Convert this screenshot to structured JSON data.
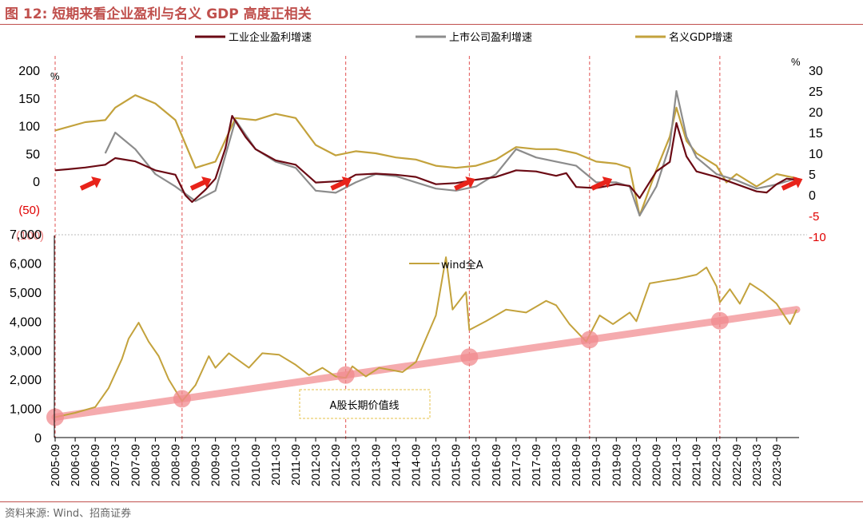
{
  "header": {
    "title": "图 12:  短期来看企业盈利与名义 GDP 高度正相关"
  },
  "footer": {
    "source": "资料来源:  Wind、招商证券"
  },
  "colors": {
    "industrial": "#6b0a14",
    "listed": "#8c8c8c",
    "gdp": "#c3a23c",
    "wind": "#c3a23c",
    "trend": "#f4a3a6",
    "dot": "#f08a8e",
    "arrow": "#e8231a",
    "vline": "#e05050",
    "accent": "#c0504d"
  },
  "chart_data": [
    {
      "type": "line",
      "legend_position": "top",
      "units": {
        "left": "%",
        "right": "%"
      },
      "ylim": [
        -50,
        200
      ],
      "y_ticks": [
        "200",
        "150",
        "100",
        "50",
        "0",
        "(50)"
      ],
      "y2lim": [
        -10,
        30
      ],
      "y2_ticks": [
        "30",
        "25",
        "20",
        "15",
        "10",
        "5",
        "0",
        "-5",
        "-10"
      ],
      "series": [
        {
          "name": "工业企业盈利增速",
          "axis": "left",
          "points": [
            [
              "2005-09",
              20
            ],
            [
              "2006-01",
              22
            ],
            [
              "2006-06",
              25
            ],
            [
              "2006-12",
              30
            ],
            [
              "2007-03",
              42
            ],
            [
              "2007-09",
              36
            ],
            [
              "2008-03",
              20
            ],
            [
              "2008-09",
              12
            ],
            [
              "2008-12",
              -25
            ],
            [
              "2009-02",
              -37
            ],
            [
              "2009-06",
              -15
            ],
            [
              "2009-09",
              5
            ],
            [
              "2009-12",
              60
            ],
            [
              "2010-02",
              118
            ],
            [
              "2010-06",
              80
            ],
            [
              "2010-09",
              58
            ],
            [
              "2011-03",
              38
            ],
            [
              "2011-09",
              30
            ],
            [
              "2012-03",
              -2
            ],
            [
              "2012-09",
              0
            ],
            [
              "2012-12",
              2
            ],
            [
              "2013-03",
              12
            ],
            [
              "2013-09",
              14
            ],
            [
              "2014-03",
              12
            ],
            [
              "2014-09",
              8
            ],
            [
              "2015-03",
              -5
            ],
            [
              "2015-09",
              -3
            ],
            [
              "2016-03",
              3
            ],
            [
              "2016-09",
              8
            ],
            [
              "2017-03",
              20
            ],
            [
              "2017-09",
              18
            ],
            [
              "2018-03",
              10
            ],
            [
              "2018-06",
              15
            ],
            [
              "2018-09",
              -10
            ],
            [
              "2019-03",
              -12
            ],
            [
              "2019-09",
              -5
            ],
            [
              "2020-01",
              -8
            ],
            [
              "2020-04",
              -30
            ],
            [
              "2020-09",
              18
            ],
            [
              "2021-01",
              35
            ],
            [
              "2021-03",
              105
            ],
            [
              "2021-06",
              45
            ],
            [
              "2021-09",
              18
            ],
            [
              "2022-03",
              8
            ],
            [
              "2022-09",
              -5
            ],
            [
              "2023-03",
              -18
            ],
            [
              "2023-06",
              -20
            ],
            [
              "2023-09",
              -5
            ],
            [
              "2023-12",
              5
            ],
            [
              "2024-03",
              3
            ]
          ]
        },
        {
          "name": "上市公司盈利增速",
          "axis": "right",
          "points": [
            [
              "2006-12",
              10
            ],
            [
              "2007-03",
              15
            ],
            [
              "2007-09",
              11
            ],
            [
              "2008-03",
              5
            ],
            [
              "2008-09",
              2
            ],
            [
              "2009-03",
              -1.5
            ],
            [
              "2009-09",
              1
            ],
            [
              "2010-03",
              18
            ],
            [
              "2010-09",
              11
            ],
            [
              "2011-03",
              8
            ],
            [
              "2011-09",
              6.5
            ],
            [
              "2012-03",
              1
            ],
            [
              "2012-09",
              0.5
            ],
            [
              "2013-03",
              3
            ],
            [
              "2013-09",
              5
            ],
            [
              "2014-03",
              4.5
            ],
            [
              "2014-09",
              3
            ],
            [
              "2015-03",
              1.5
            ],
            [
              "2015-09",
              1
            ],
            [
              "2016-03",
              2
            ],
            [
              "2016-09",
              5
            ],
            [
              "2017-03",
              11
            ],
            [
              "2017-09",
              9
            ],
            [
              "2018-03",
              8
            ],
            [
              "2018-09",
              7
            ],
            [
              "2019-03",
              3
            ],
            [
              "2019-09",
              3
            ],
            [
              "2020-01",
              2
            ],
            [
              "2020-04",
              -5
            ],
            [
              "2020-09",
              2
            ],
            [
              "2021-01",
              12
            ],
            [
              "2021-03",
              25
            ],
            [
              "2021-06",
              14
            ],
            [
              "2021-09",
              9
            ],
            [
              "2022-03",
              5
            ],
            [
              "2022-09",
              3.5
            ],
            [
              "2023-03",
              1.5
            ],
            [
              "2023-09",
              2.5
            ],
            [
              "2024-03",
              4
            ]
          ]
        },
        {
          "name": "名义GDP增速",
          "axis": "right",
          "points": [
            [
              "2005-09",
              15.5
            ],
            [
              "2006-06",
              17.5
            ],
            [
              "2006-12",
              18
            ],
            [
              "2007-03",
              21
            ],
            [
              "2007-09",
              24
            ],
            [
              "2008-03",
              22
            ],
            [
              "2008-09",
              18
            ],
            [
              "2009-03",
              6.5
            ],
            [
              "2009-09",
              8
            ],
            [
              "2010-03",
              18.5
            ],
            [
              "2010-09",
              18
            ],
            [
              "2011-03",
              19.5
            ],
            [
              "2011-09",
              18.5
            ],
            [
              "2012-03",
              12
            ],
            [
              "2012-09",
              9.5
            ],
            [
              "2013-03",
              10.5
            ],
            [
              "2013-09",
              10
            ],
            [
              "2014-03",
              9
            ],
            [
              "2014-09",
              8.5
            ],
            [
              "2015-03",
              7
            ],
            [
              "2015-09",
              6.5
            ],
            [
              "2016-03",
              7
            ],
            [
              "2016-09",
              8.5
            ],
            [
              "2017-03",
              11.5
            ],
            [
              "2017-09",
              11
            ],
            [
              "2018-03",
              11
            ],
            [
              "2018-09",
              10
            ],
            [
              "2019-03",
              8
            ],
            [
              "2019-09",
              7.5
            ],
            [
              "2020-01",
              6.5
            ],
            [
              "2020-04",
              -5
            ],
            [
              "2020-09",
              6
            ],
            [
              "2021-01",
              14
            ],
            [
              "2021-03",
              21
            ],
            [
              "2021-06",
              13
            ],
            [
              "2021-09",
              10
            ],
            [
              "2022-03",
              7
            ],
            [
              "2022-06",
              3
            ],
            [
              "2022-09",
              5
            ],
            [
              "2023-03",
              2
            ],
            [
              "2023-09",
              5
            ],
            [
              "2024-03",
              4
            ]
          ]
        }
      ],
      "arrows_at": [
        "2006-09",
        "2009-06",
        "2012-12",
        "2016-01",
        "2019-06",
        "2024-03"
      ]
    },
    {
      "type": "line",
      "ylim": [
        0,
        7000
      ],
      "y_ticks": [
        "7,000",
        "6,000",
        "5,000",
        "4,000",
        "3,000",
        "2,000",
        "1,000",
        "0"
      ],
      "x_ticks": [
        "2005-09",
        "2006-03",
        "2006-09",
        "2007-03",
        "2007-09",
        "2008-03",
        "2008-09",
        "2009-03",
        "2009-09",
        "2010-03",
        "2010-09",
        "2011-03",
        "2011-09",
        "2012-03",
        "2012-09",
        "2013-03",
        "2013-09",
        "2014-03",
        "2014-09",
        "2015-03",
        "2015-09",
        "2016-03",
        "2016-09",
        "2017-03",
        "2017-09",
        "2018-03",
        "2018-09",
        "2019-03",
        "2019-09",
        "2020-03",
        "2020-09",
        "2021-03",
        "2021-09",
        "2022-03",
        "2022-09",
        "2023-03",
        "2023-09"
      ],
      "series": [
        {
          "name": "wind全A",
          "points": [
            [
              "2005-09",
              700
            ],
            [
              "2006-03",
              850
            ],
            [
              "2006-09",
              1050
            ],
            [
              "2007-01",
              1700
            ],
            [
              "2007-05",
              2700
            ],
            [
              "2007-07",
              3400
            ],
            [
              "2007-10",
              3950
            ],
            [
              "2008-01",
              3300
            ],
            [
              "2008-04",
              2800
            ],
            [
              "2008-07",
              2000
            ],
            [
              "2008-11",
              1250
            ],
            [
              "2009-03",
              1800
            ],
            [
              "2009-07",
              2800
            ],
            [
              "2009-09",
              2400
            ],
            [
              "2010-01",
              2900
            ],
            [
              "2010-07",
              2400
            ],
            [
              "2010-11",
              2900
            ],
            [
              "2011-04",
              2850
            ],
            [
              "2011-09",
              2500
            ],
            [
              "2012-01",
              2150
            ],
            [
              "2012-05",
              2400
            ],
            [
              "2012-09",
              2100
            ],
            [
              "2012-12",
              2050
            ],
            [
              "2013-02",
              2450
            ],
            [
              "2013-06",
              2100
            ],
            [
              "2013-10",
              2400
            ],
            [
              "2014-05",
              2250
            ],
            [
              "2014-09",
              2600
            ],
            [
              "2014-12",
              3400
            ],
            [
              "2015-03",
              4200
            ],
            [
              "2015-06",
              6200
            ],
            [
              "2015-08",
              4400
            ],
            [
              "2015-12",
              5000
            ],
            [
              "2016-01",
              3700
            ],
            [
              "2016-06",
              4000
            ],
            [
              "2016-12",
              4400
            ],
            [
              "2017-06",
              4300
            ],
            [
              "2017-12",
              4700
            ],
            [
              "2018-03",
              4550
            ],
            [
              "2018-07",
              3900
            ],
            [
              "2018-12",
              3300
            ],
            [
              "2019-04",
              4200
            ],
            [
              "2019-08",
              3900
            ],
            [
              "2020-01",
              4300
            ],
            [
              "2020-03",
              4000
            ],
            [
              "2020-07",
              5300
            ],
            [
              "2020-12",
              5400
            ],
            [
              "2021-03",
              5450
            ],
            [
              "2021-09",
              5600
            ],
            [
              "2021-12",
              5850
            ],
            [
              "2022-03",
              5200
            ],
            [
              "2022-04",
              4650
            ],
            [
              "2022-07",
              5100
            ],
            [
              "2022-10",
              4600
            ],
            [
              "2023-01",
              5300
            ],
            [
              "2023-05",
              5000
            ],
            [
              "2023-09",
              4600
            ],
            [
              "2024-01",
              3900
            ],
            [
              "2024-03",
              4400
            ]
          ]
        }
      ],
      "annotation": "A股长期价值线",
      "trend_line": [
        [
          "2005-09",
          700
        ],
        [
          "2024-03",
          4400
        ]
      ],
      "trend_points": [
        "2005-09",
        "2008-11",
        "2012-12",
        "2016-01",
        "2019-01",
        "2022-04"
      ]
    }
  ]
}
